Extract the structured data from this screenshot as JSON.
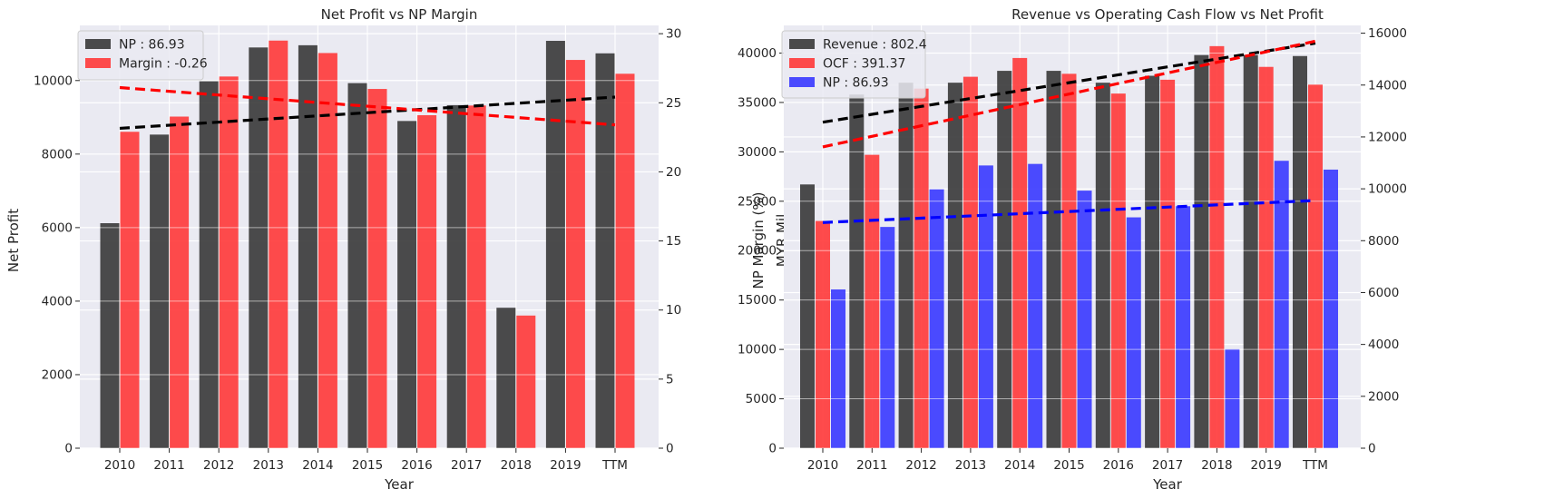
{
  "chart_data": [
    {
      "type": "bar",
      "title": "Net Profit vs NP Margin",
      "xlabel": "Year",
      "ylabel": "Net Profit",
      "ylabel_right": "NP Margin (%)",
      "categories": [
        "2010",
        "2011",
        "2012",
        "2013",
        "2014",
        "2015",
        "2016",
        "2017",
        "2018",
        "2019",
        "TTM"
      ],
      "ylim": [
        0,
        11500
      ],
      "yticks": [
        0,
        2000,
        4000,
        6000,
        8000,
        10000
      ],
      "ylim_right": [
        0,
        30.6
      ],
      "yticks_right": [
        0,
        5,
        10,
        15,
        20,
        25,
        30
      ],
      "grid": true,
      "legend": "upper-left",
      "series": [
        {
          "name": "NP : 86.93",
          "axis": "left",
          "color": "#333333",
          "values": [
            6120,
            8530,
            9980,
            10900,
            10960,
            9930,
            8900,
            9330,
            3820,
            11080,
            10740
          ]
        },
        {
          "name": "Margin : -0.26",
          "axis": "right",
          "color": "#ff3333",
          "values": [
            22.9,
            24.0,
            26.9,
            29.5,
            28.6,
            26.0,
            24.1,
            24.8,
            9.6,
            28.1,
            27.1
          ]
        }
      ],
      "trendlines": [
        {
          "axis": "left",
          "color": "#000000",
          "from": [
            0,
            8700
          ],
          "to": [
            10,
            9550
          ]
        },
        {
          "axis": "right",
          "color": "#ff0000",
          "from": [
            0,
            26.1
          ],
          "to": [
            10,
            23.4
          ]
        }
      ]
    },
    {
      "type": "bar",
      "title": "Revenue vs Operating Cash Flow vs Net Profit",
      "xlabel": "Year",
      "ylabel": "MYR Mil",
      "ylabel_right": "",
      "categories": [
        "2010",
        "2011",
        "2012",
        "2013",
        "2014",
        "2015",
        "2016",
        "2017",
        "2018",
        "2019",
        "TTM"
      ],
      "ylim": [
        0,
        42800
      ],
      "yticks": [
        0,
        5000,
        10000,
        15000,
        20000,
        25000,
        30000,
        35000,
        40000
      ],
      "ylim_right": [
        0,
        16300
      ],
      "yticks_right": [
        0,
        2000,
        4000,
        6000,
        8000,
        10000,
        12000,
        14000,
        16000
      ],
      "grid": true,
      "legend": "upper-left",
      "series": [
        {
          "name": "Revenue : 802.4",
          "axis": "left",
          "color": "#333333",
          "values": [
            26700,
            35800,
            37000,
            37000,
            38200,
            38200,
            37000,
            37700,
            39800,
            39800,
            39700
          ]
        },
        {
          "name": "OCF : 391.37",
          "axis": "left",
          "color": "#ff3333",
          "values": [
            23000,
            29700,
            36400,
            37600,
            39500,
            37900,
            35900,
            37300,
            40700,
            38600,
            36800
          ]
        },
        {
          "name": "NP : 86.93",
          "axis": "right",
          "color": "#3333ff",
          "values": [
            6120,
            8530,
            9980,
            10900,
            10960,
            9930,
            8900,
            9330,
            3820,
            11080,
            10740
          ]
        }
      ],
      "trendlines": [
        {
          "axis": "left",
          "color": "#000000",
          "from": [
            0,
            33000
          ],
          "to": [
            10,
            41000
          ]
        },
        {
          "axis": "left",
          "color": "#ff0000",
          "from": [
            0,
            30500
          ],
          "to": [
            10,
            41200
          ]
        },
        {
          "axis": "right",
          "color": "#0000ff",
          "from": [
            0,
            8700
          ],
          "to": [
            10,
            9550
          ]
        }
      ]
    }
  ]
}
